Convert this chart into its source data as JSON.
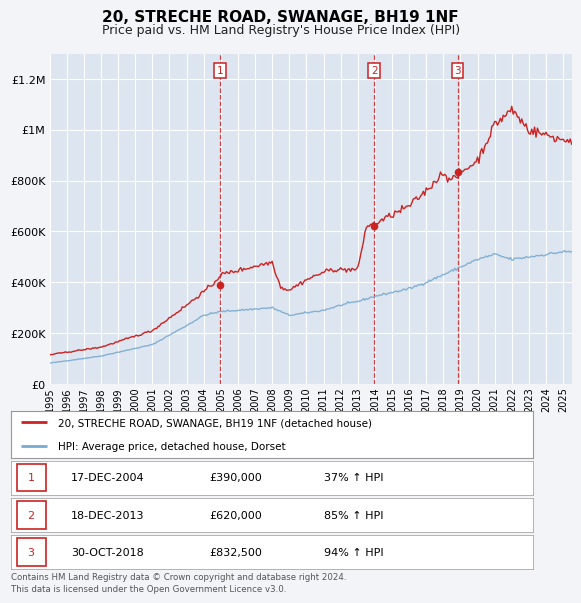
{
  "title": "20, STRECHE ROAD, SWANAGE, BH19 1NF",
  "subtitle": "Price paid vs. HM Land Registry's House Price Index (HPI)",
  "background_color": "#f2f4f8",
  "plot_bg_color": "#dde6f0",
  "grid_color": "#ffffff",
  "hpi_color": "#7aaad0",
  "price_color": "#cc2222",
  "marker_color": "#cc2222",
  "purchases": [
    {
      "date_num": 2004.96,
      "price": 390000,
      "label": "1"
    },
    {
      "date_num": 2013.96,
      "price": 620000,
      "label": "2"
    },
    {
      "date_num": 2018.83,
      "price": 832500,
      "label": "3"
    }
  ],
  "vline_dates": [
    2004.96,
    2013.96,
    2018.83
  ],
  "legend_price_label": "20, STRECHE ROAD, SWANAGE, BH19 1NF (detached house)",
  "legend_hpi_label": "HPI: Average price, detached house, Dorset",
  "table_rows": [
    {
      "num": "1",
      "date": "17-DEC-2004",
      "price": "£390,000",
      "pct": "37% ↑ HPI"
    },
    {
      "num": "2",
      "date": "18-DEC-2013",
      "price": "£620,000",
      "pct": "85% ↑ HPI"
    },
    {
      "num": "3",
      "date": "30-OCT-2018",
      "price": "£832,500",
      "pct": "94% ↑ HPI"
    }
  ],
  "footer": "Contains HM Land Registry data © Crown copyright and database right 2024.\nThis data is licensed under the Open Government Licence v3.0.",
  "ylim": [
    0,
    1300000
  ],
  "yticks": [
    0,
    200000,
    400000,
    600000,
    800000,
    1000000,
    1200000
  ],
  "ytick_labels": [
    "£0",
    "£200K",
    "£400K",
    "£600K",
    "£800K",
    "£1M",
    "£1.2M"
  ],
  "xmin": 1995,
  "xmax": 2025.5
}
